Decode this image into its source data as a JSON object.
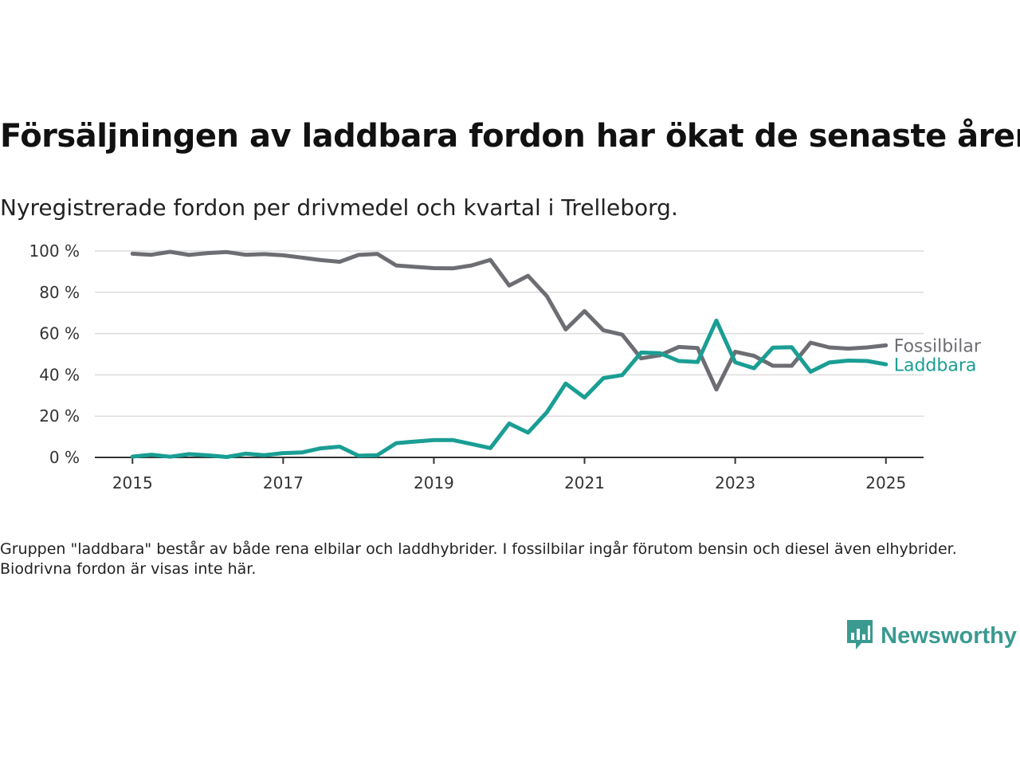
{
  "title": "Försäljningen av laddbara fordon har ökat de senaste åren",
  "subtitle": "Nyregistrerade fordon per drivmedel och kvartal i Trelleborg.",
  "note": "Gruppen \"laddbara\" består av både rena elbilar och laddhybrider. I fossilbilar ingår förutom bensin och diesel även elhybrider. Biodrivna fordon är visas inte här.",
  "brand": {
    "name": "Newsworthy",
    "logo_icon": "newsworthy-logo-icon",
    "color": "#3a9a90"
  },
  "chart_data": {
    "type": "line",
    "title": "Försäljningen av laddbara fordon har ökat de senaste åren",
    "subtitle": "Nyregistrerade fordon per drivmedel och kvartal i Trelleborg.",
    "xlabel": "",
    "ylabel": "",
    "y_unit": "%",
    "ylim": [
      0,
      100
    ],
    "y_ticks": [
      0,
      20,
      40,
      60,
      80,
      100
    ],
    "y_tick_labels": [
      "0 %",
      "20 %",
      "40 %",
      "60 %",
      "80 %",
      "100 %"
    ],
    "xlim": [
      2014.5,
      2025.5
    ],
    "x_ticks": [
      2015,
      2017,
      2019,
      2021,
      2023,
      2025
    ],
    "x_tick_labels": [
      "2015",
      "2017",
      "2019",
      "2021",
      "2023",
      "2025"
    ],
    "grid": true,
    "legend": "inline-right",
    "x": [
      2015.0,
      2015.25,
      2015.5,
      2015.75,
      2016.0,
      2016.25,
      2016.5,
      2016.75,
      2017.0,
      2017.25,
      2017.5,
      2017.75,
      2018.0,
      2018.25,
      2018.5,
      2018.75,
      2019.0,
      2019.25,
      2019.5,
      2019.75,
      2020.0,
      2020.25,
      2020.5,
      2020.75,
      2021.0,
      2021.25,
      2021.5,
      2021.75,
      2022.0,
      2022.25,
      2022.5,
      2022.75,
      2023.0,
      2023.25,
      2023.5,
      2023.75,
      2024.0,
      2024.25,
      2024.5,
      2024.75,
      2025.0
    ],
    "series": [
      {
        "name": "Fossilbilar",
        "color": "#6d6e73",
        "values": [
          98.7,
          98.2,
          99.6,
          98.1,
          99.0,
          99.5,
          98.2,
          98.5,
          97.9,
          96.8,
          95.6,
          94.8,
          98.1,
          98.6,
          93.0,
          92.3,
          91.7,
          91.6,
          93.0,
          95.7,
          83.3,
          88.0,
          78.1,
          62.0,
          70.9,
          61.6,
          59.5,
          48.0,
          49.5,
          53.5,
          53.0,
          32.9,
          51.2,
          49.2,
          44.4,
          44.4,
          55.6,
          53.3,
          52.7,
          53.3,
          54.3
        ]
      },
      {
        "name": "Laddbara",
        "color": "#1a9e94",
        "values": [
          0.4,
          1.3,
          0.3,
          1.6,
          1.0,
          0.2,
          1.8,
          1.1,
          2.1,
          2.4,
          4.4,
          5.2,
          0.8,
          1.1,
          6.9,
          7.7,
          8.4,
          8.4,
          6.5,
          4.5,
          16.4,
          12.0,
          21.9,
          35.8,
          29.0,
          38.4,
          39.9,
          50.8,
          50.5,
          46.7,
          46.2,
          66.3,
          46.1,
          43.2,
          53.2,
          53.4,
          41.5,
          46.0,
          46.9,
          46.7,
          45.1
        ]
      }
    ]
  }
}
